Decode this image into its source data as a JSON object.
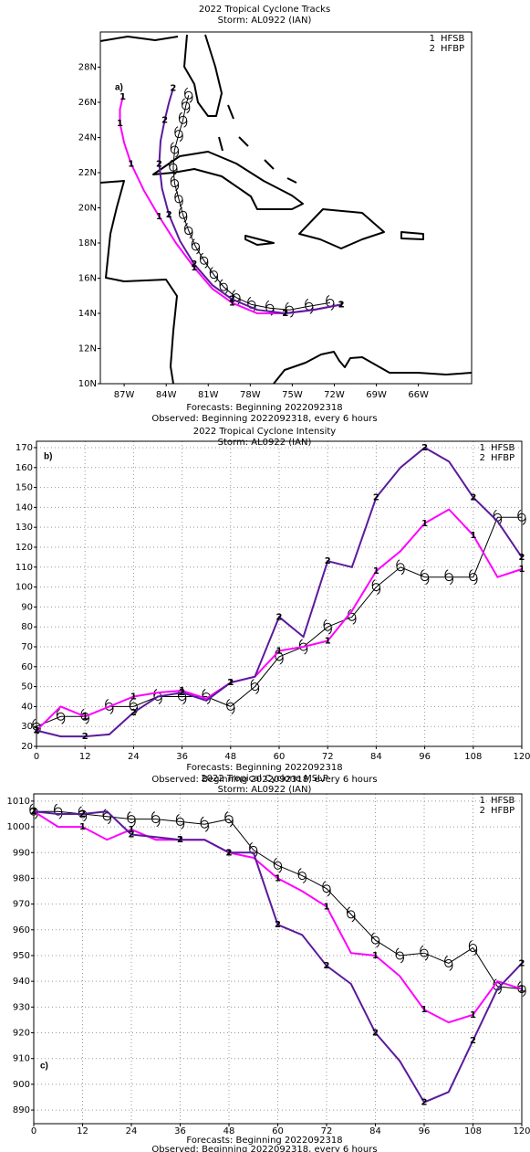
{
  "chart_data": [
    {
      "type": "map",
      "title": "2022 Tropical Cyclone Tracks",
      "subtitle": "Storm: AL0922 (IAN)",
      "panel_label": "a)",
      "footer": [
        "Forecasts: Beginning 2022092318",
        "Observed: Beginning 2022092318, every 6 hours"
      ],
      "xlim": [
        -88.7,
        -62.2
      ],
      "ylim": [
        10,
        30
      ],
      "xticks": [
        {
          "value": -87,
          "label": "87W"
        },
        {
          "value": -84,
          "label": "84W"
        },
        {
          "value": -81,
          "label": "81W"
        },
        {
          "value": -78,
          "label": "78W"
        },
        {
          "value": -75,
          "label": "75W"
        },
        {
          "value": -72,
          "label": "72W"
        },
        {
          "value": -69,
          "label": "69W"
        },
        {
          "value": -66,
          "label": "66W"
        }
      ],
      "yticks": [
        {
          "value": 10,
          "label": "10N"
        },
        {
          "value": 12,
          "label": "12N"
        },
        {
          "value": 14,
          "label": "14N"
        },
        {
          "value": 16,
          "label": "16N"
        },
        {
          "value": 18,
          "label": "18N"
        },
        {
          "value": 20,
          "label": "20N"
        },
        {
          "value": 22,
          "label": "22N"
        },
        {
          "value": 24,
          "label": "24N"
        },
        {
          "value": 26,
          "label": "26N"
        },
        {
          "value": 28,
          "label": "28N"
        }
      ],
      "grid": false,
      "series": [
        {
          "color": "#000000",
          "x": [
            -72.3,
            -73.8,
            -75.2,
            -76.6,
            -77.9,
            -79.0,
            -79.9,
            -80.6,
            -81.3,
            -81.9,
            -82.4,
            -82.8,
            -83.1,
            -83.4,
            -83.5,
            -83.4,
            -83.1,
            -82.8,
            -82.6,
            -82.4
          ],
          "values": [
            14.6,
            14.4,
            14.2,
            14.3,
            14.5,
            14.9,
            15.5,
            16.2,
            17.0,
            17.8,
            18.7,
            19.6,
            20.5,
            21.4,
            22.3,
            23.3,
            24.2,
            25.0,
            25.8,
            26.4
          ]
        },
        {
          "name": "HFSB",
          "marker": "1",
          "color": "#ff00ff",
          "x": [
            -71.5,
            -73.5,
            -75.5,
            -77.5,
            -79.3,
            -80.7,
            -82.0,
            -83.3,
            -84.5,
            -85.6,
            -86.5,
            -87.0,
            -87.3,
            -87.3,
            -87.1
          ],
          "values": [
            14.5,
            14.2,
            14.0,
            14.0,
            14.6,
            15.4,
            16.6,
            18.0,
            19.5,
            21.0,
            22.5,
            23.7,
            24.8,
            25.6,
            26.3
          ]
        },
        {
          "name": "HFBP",
          "marker": "2",
          "color": "#5b1a9b",
          "x": [
            -71.5,
            -73.5,
            -75.5,
            -77.5,
            -79.3,
            -80.7,
            -82.0,
            -83.0,
            -83.8,
            -84.3,
            -84.5,
            -84.4,
            -84.1,
            -83.8,
            -83.5
          ],
          "values": [
            14.5,
            14.2,
            14.0,
            14.2,
            14.8,
            15.6,
            16.8,
            18.1,
            19.6,
            21.1,
            22.5,
            23.8,
            25.0,
            26.0,
            26.8
          ]
        }
      ]
    },
    {
      "type": "line",
      "title": "2022 Tropical Cyclone Intensity",
      "subtitle": "Storm: AL0922 (IAN)",
      "panel_label": "b)",
      "footer": [
        "Forecasts: Beginning 2022092318",
        "Observed: Beginning 2022092318, every 6 hours"
      ],
      "x": [
        0,
        6,
        12,
        18,
        24,
        30,
        36,
        42,
        48,
        54,
        60,
        66,
        72,
        78,
        84,
        90,
        96,
        102,
        108,
        114,
        120
      ],
      "xlim": [
        0,
        120
      ],
      "xticks": [
        0,
        12,
        24,
        36,
        48,
        60,
        72,
        84,
        96,
        108,
        120
      ],
      "ylim": [
        20,
        173.2
      ],
      "yticks": [
        20,
        30,
        40,
        50,
        60,
        70,
        80,
        90,
        100,
        110,
        120,
        130,
        140,
        150,
        160,
        170
      ],
      "grid": true,
      "series": [
        {
          "color": "#000000",
          "values": [
            30,
            35,
            35,
            40,
            40,
            45,
            45,
            45,
            40,
            50,
            65,
            70,
            80,
            85,
            100,
            110,
            105,
            105,
            105,
            135,
            135
          ]
        },
        {
          "name": "HFSB",
          "marker": "1",
          "color": "#ff00ff",
          "values": [
            28,
            40,
            35,
            40,
            45,
            47,
            48,
            44,
            52,
            55,
            68,
            70,
            73,
            88,
            108,
            118,
            132,
            139,
            126,
            105,
            109
          ]
        },
        {
          "name": "HFBP",
          "marker": "2",
          "color": "#5b1a9b",
          "values": [
            28,
            25,
            25,
            26,
            37,
            45,
            47,
            43,
            52,
            55,
            85,
            75,
            113,
            110,
            145,
            160,
            170,
            163,
            145,
            133,
            115
          ]
        }
      ]
    },
    {
      "type": "line",
      "title": "2022 Tropical Cyclone MSLP",
      "subtitle": "Storm: AL0922 (IAN)",
      "panel_label": "c)",
      "footer": [
        "Forecasts: Beginning 2022092318",
        "Observed: Beginning 2022092318, every 6 hours"
      ],
      "x": [
        0,
        6,
        12,
        18,
        24,
        30,
        36,
        42,
        48,
        54,
        60,
        66,
        72,
        78,
        84,
        90,
        96,
        102,
        108,
        114,
        120
      ],
      "xlim": [
        0,
        120
      ],
      "xticks": [
        0,
        12,
        24,
        36,
        48,
        60,
        72,
        84,
        96,
        108,
        120
      ],
      "ylim": [
        884.7,
        1012.8
      ],
      "yticks": [
        890,
        900,
        910,
        920,
        930,
        940,
        950,
        960,
        970,
        980,
        990,
        1000,
        1010
      ],
      "grid": true,
      "series": [
        {
          "color": "#000000",
          "values": [
            1006,
            1006,
            1005,
            1004,
            1003,
            1003,
            1002,
            1001,
            1003,
            991,
            985,
            981,
            976,
            966,
            956,
            950,
            951,
            947,
            953,
            938,
            937
          ]
        },
        {
          "name": "HFSB",
          "marker": "1",
          "color": "#ff00ff",
          "values": [
            1006,
            1000,
            1000,
            995,
            999,
            995,
            995,
            995,
            990,
            988,
            980,
            975,
            969,
            951,
            950,
            942,
            929,
            924,
            927,
            940,
            937
          ]
        },
        {
          "name": "HFBP",
          "marker": "2",
          "color": "#5b1a9b",
          "values": [
            1006,
            1005,
            1005,
            1006,
            997,
            996,
            995,
            995,
            990,
            990,
            962,
            958,
            946,
            939,
            920,
            909,
            893,
            897,
            917,
            937,
            947
          ]
        }
      ]
    }
  ]
}
